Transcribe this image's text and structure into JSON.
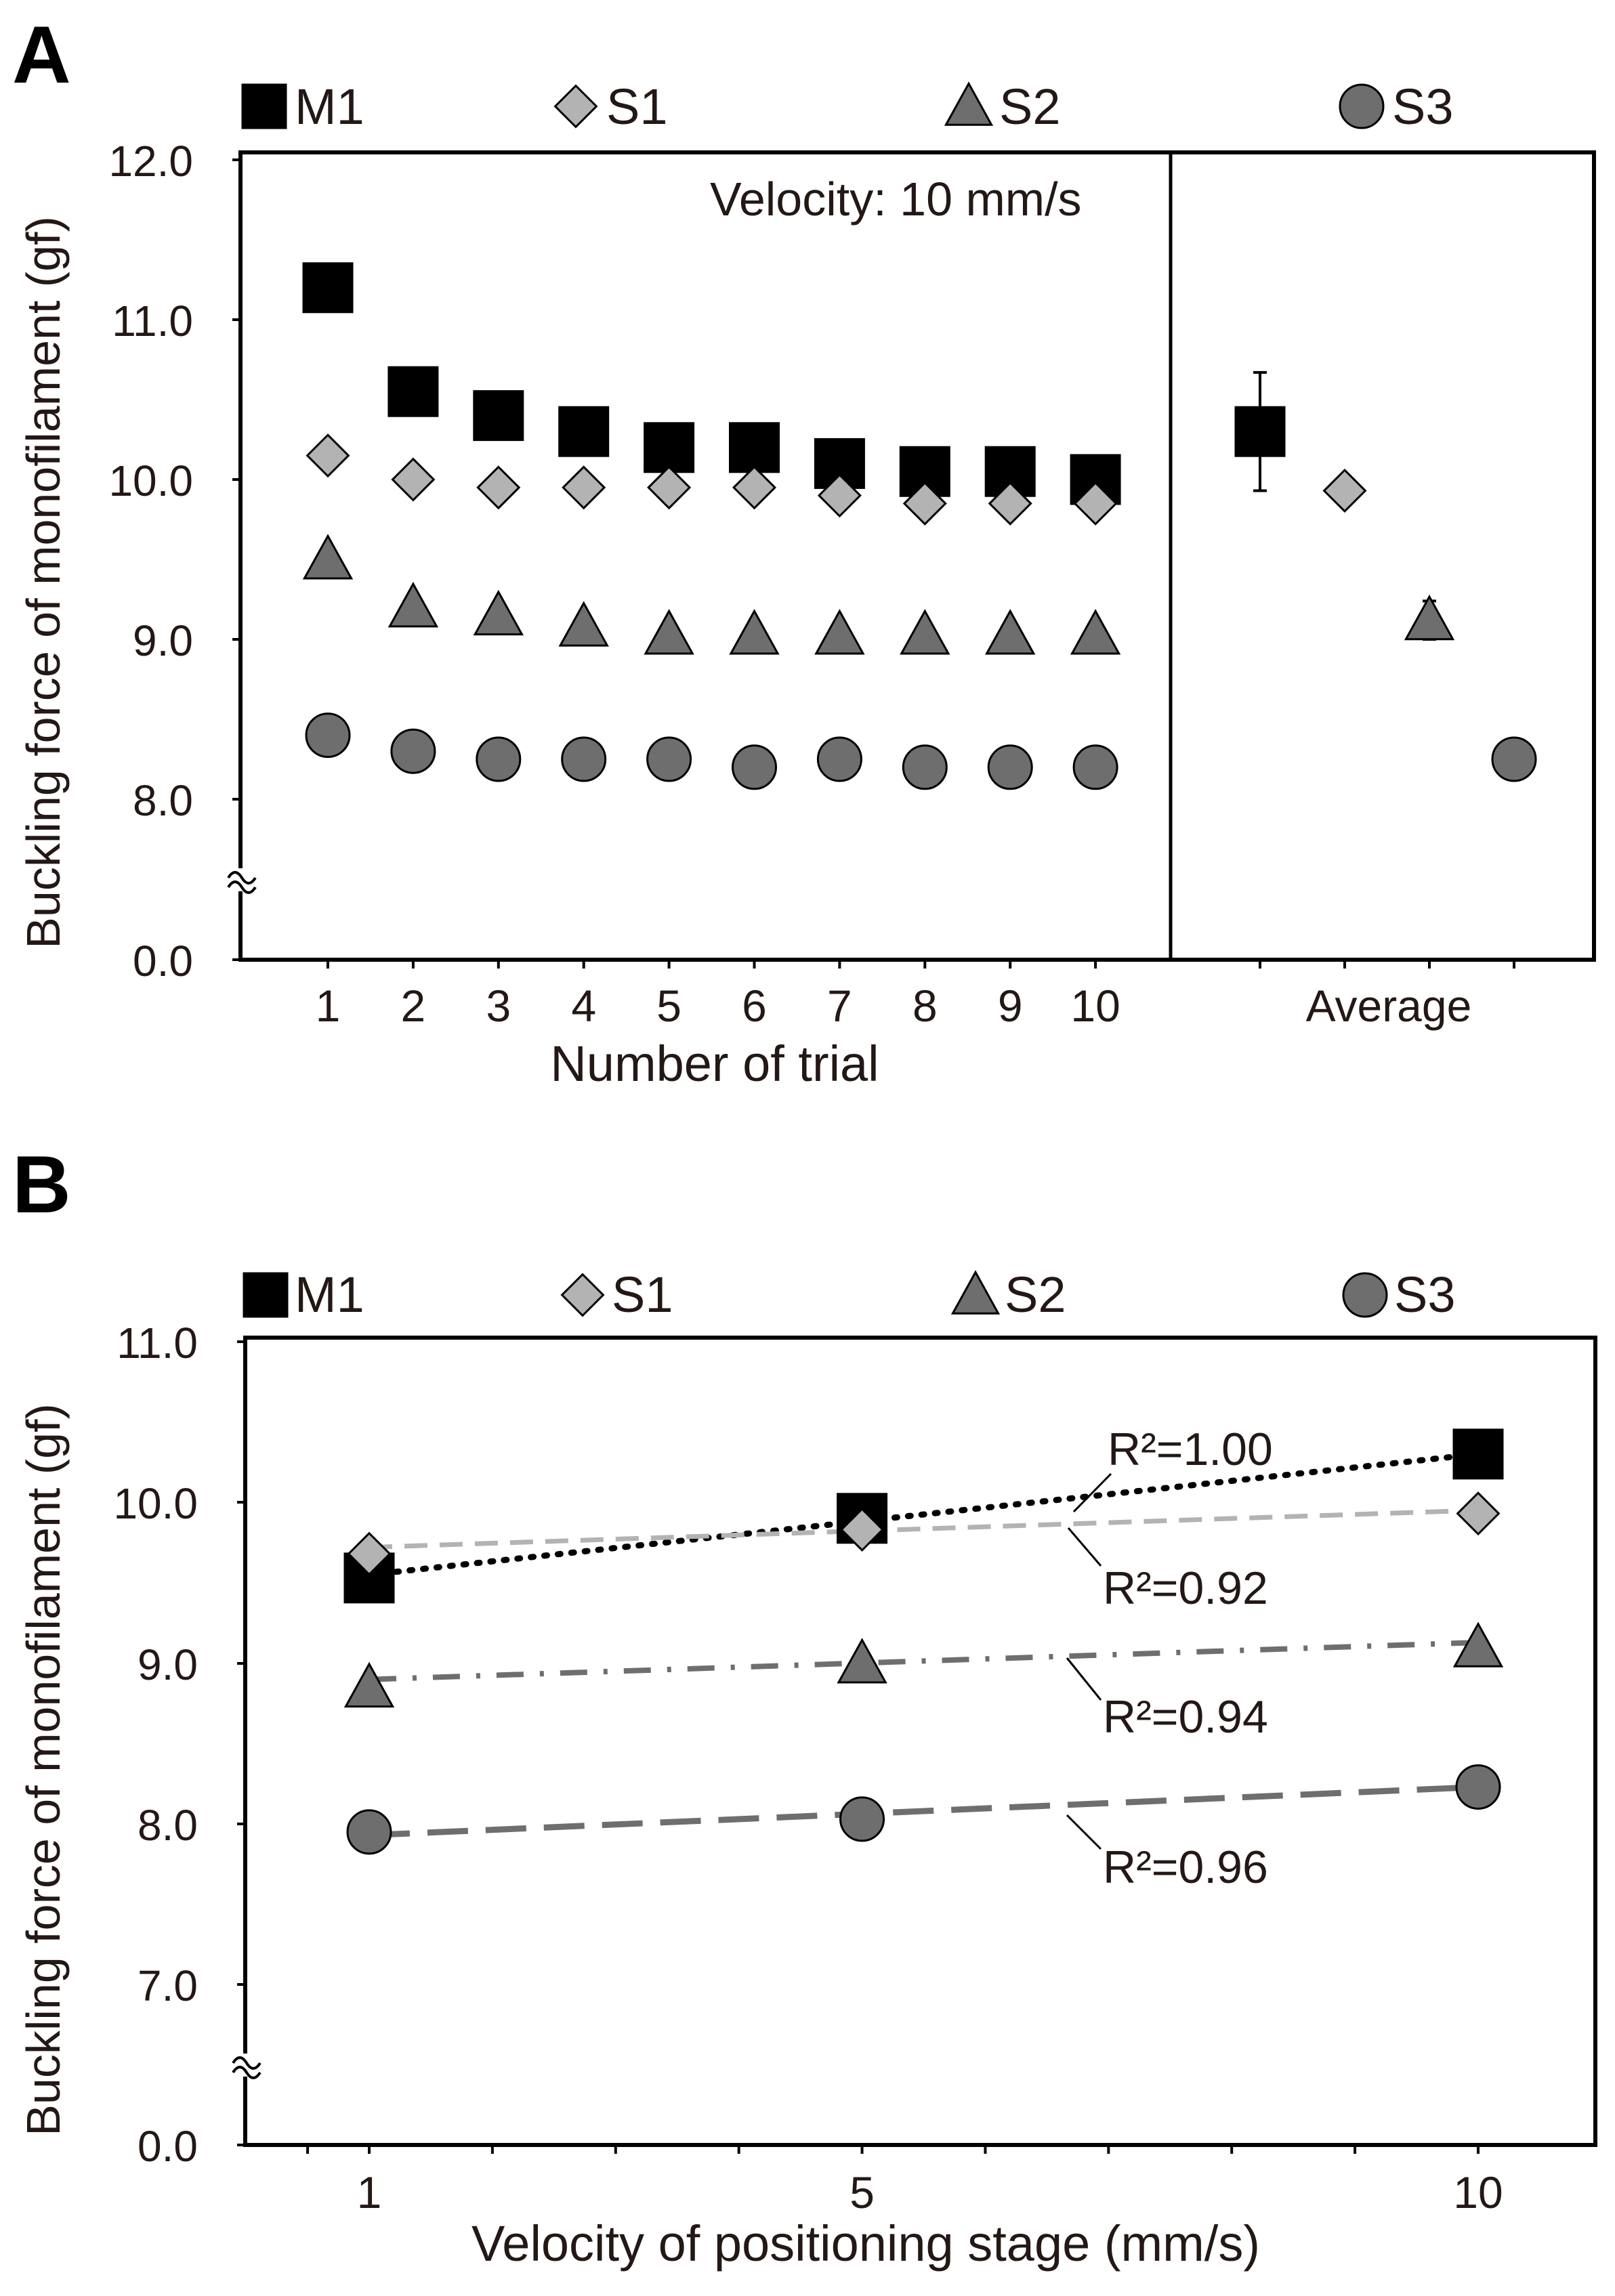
{
  "chart_data": [
    {
      "panel": "A",
      "type": "scatter",
      "xlabel": "Number of trial",
      "ylabel": "Buckling force of monofilament (gf)",
      "annotation": "Velocity: 10 mm/s",
      "y_ticks": [
        "0.0",
        "8.0",
        "9.0",
        "10.0",
        "11.0",
        "12.0"
      ],
      "y_tick_values": [
        7.5,
        8.0,
        9.0,
        10.0,
        11.0,
        12.0
      ],
      "ylim": [
        7.0,
        12.0
      ],
      "axis_break": true,
      "categories": [
        "1",
        "2",
        "3",
        "4",
        "5",
        "6",
        "7",
        "8",
        "9",
        "10"
      ],
      "average_label": "Average",
      "series": [
        {
          "name": "M1",
          "marker": "square",
          "color": "#000000",
          "values": [
            11.2,
            10.55,
            10.4,
            10.3,
            10.2,
            10.2,
            10.1,
            10.05,
            10.05,
            10.0
          ],
          "average": 10.3,
          "average_err": 0.37
        },
        {
          "name": "S1",
          "marker": "diamond",
          "color": "#b3b3b3",
          "values": [
            10.15,
            10.0,
            9.95,
            9.95,
            9.95,
            9.95,
            9.9,
            9.85,
            9.85,
            9.85
          ],
          "average": 9.93,
          "average_err": 0.0
        },
        {
          "name": "S2",
          "marker": "triangle",
          "color": "#6e6e6e",
          "values": [
            9.5,
            9.2,
            9.15,
            9.08,
            9.03,
            9.03,
            9.03,
            9.03,
            9.03,
            9.03
          ],
          "average": 9.12,
          "average_err": 0.12
        },
        {
          "name": "S3",
          "marker": "circle",
          "color": "#6e6e6e",
          "values": [
            8.4,
            8.3,
            8.25,
            8.25,
            8.25,
            8.2,
            8.25,
            8.2,
            8.2,
            8.2
          ],
          "average": 8.25,
          "average_err": 0.0
        }
      ]
    },
    {
      "panel": "B",
      "type": "scatter",
      "xlabel": "Velocity of positioning stage (mm/s)",
      "ylabel": "Buckling force of monofilament (gf)",
      "y_ticks": [
        "0.0",
        "7.0",
        "8.0",
        "9.0",
        "10.0",
        "11.0"
      ],
      "y_tick_values": [
        6.0,
        7.0,
        8.0,
        9.0,
        10.0,
        11.0
      ],
      "ylim": [
        6.0,
        11.0
      ],
      "axis_break": true,
      "x": [
        1,
        5,
        10
      ],
      "x_ticks": [
        "1",
        "5",
        "10"
      ],
      "series": [
        {
          "name": "M1",
          "marker": "square",
          "color": "#000000",
          "values": [
            9.53,
            9.9,
            10.3
          ],
          "trend": [
            9.55,
            10.3
          ],
          "trend_style": "dotted",
          "r2": "R²=1.00"
        },
        {
          "name": "S1",
          "marker": "diamond",
          "color": "#b3b3b3",
          "values": [
            9.68,
            9.83,
            9.93
          ],
          "trend": [
            9.72,
            9.95
          ],
          "trend_style": "dashed",
          "r2": "R²=0.92"
        },
        {
          "name": "S2",
          "marker": "triangle",
          "color": "#6e6e6e",
          "values": [
            8.85,
            9.0,
            9.1
          ],
          "trend": [
            8.9,
            9.13
          ],
          "trend_style": "dashdot",
          "r2": "R²=0.94"
        },
        {
          "name": "S3",
          "marker": "circle",
          "color": "#6e6e6e",
          "values": [
            7.95,
            8.03,
            8.23
          ],
          "trend": [
            7.93,
            8.23
          ],
          "trend_style": "longdash",
          "r2": "R²=0.96"
        }
      ]
    }
  ]
}
